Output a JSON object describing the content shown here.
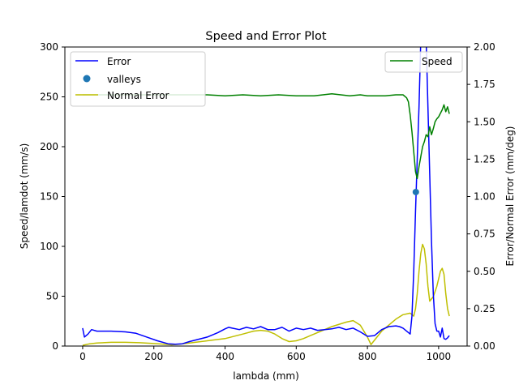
{
  "chart_data": {
    "type": "line",
    "title": "Speed and Error Plot",
    "xlabel": "lambda (mm)",
    "ylabel_left": "Speed/lamdot (mm/s)",
    "ylabel_right": "Error/Normal Error (mm/deg)",
    "xlim": [
      -50,
      1080
    ],
    "ylim_left": [
      0,
      300
    ],
    "ylim_right": [
      0,
      2.0
    ],
    "xticks": [
      0,
      200,
      400,
      600,
      800,
      1000
    ],
    "yticks_left": [
      0,
      50,
      100,
      150,
      200,
      250,
      300
    ],
    "yticks_right": [
      0.0,
      0.25,
      0.5,
      0.75,
      1.0,
      1.25,
      1.5,
      1.75,
      2.0
    ],
    "colors": {
      "error": "#0000ff",
      "valleys": "#1f77b4",
      "normal_error": "#bfbf00",
      "speed": "#008000"
    },
    "legend_left": {
      "placement": "upper-left",
      "entries": [
        "Error",
        "valleys",
        "Normal Error"
      ]
    },
    "legend_right": {
      "placement": "upper-right",
      "entries": [
        "Speed"
      ]
    },
    "series": [
      {
        "name": "Speed",
        "axis": "left",
        "x": [
          0,
          50,
          100,
          150,
          200,
          240,
          260,
          300,
          350,
          400,
          450,
          500,
          550,
          600,
          650,
          700,
          750,
          780,
          800,
          850,
          880,
          900,
          910,
          915,
          920,
          925,
          930,
          935,
          940,
          945,
          950,
          955,
          960,
          965,
          970,
          975,
          980,
          985,
          990,
          995,
          1000,
          1010,
          1015,
          1020,
          1025,
          1030
        ],
        "y": [
          252,
          252,
          252,
          252,
          252,
          252,
          252,
          252,
          252,
          251,
          252,
          251,
          252,
          251,
          251,
          253,
          251,
          252,
          251,
          251,
          252,
          252,
          249,
          245,
          232,
          215,
          195,
          175,
          168,
          180,
          190,
          200,
          205,
          212,
          210,
          220,
          212,
          218,
          225,
          228,
          230,
          237,
          242,
          235,
          240,
          233
        ]
      },
      {
        "name": "Error",
        "axis": "right",
        "x": [
          0,
          5,
          15,
          25,
          40,
          80,
          120,
          150,
          180,
          210,
          240,
          260,
          280,
          300,
          350,
          380,
          400,
          410,
          420,
          440,
          460,
          480,
          500,
          520,
          540,
          560,
          580,
          600,
          620,
          640,
          660,
          680,
          700,
          720,
          740,
          760,
          780,
          800,
          820,
          840,
          860,
          880,
          890,
          900,
          910,
          920,
          925,
          930,
          935,
          940,
          945,
          950,
          955,
          960,
          965,
          970,
          975,
          980,
          985,
          990,
          995,
          1000,
          1005,
          1010,
          1015,
          1020,
          1025,
          1030
        ],
        "y": [
          0.12,
          0.06,
          0.08,
          0.11,
          0.1,
          0.1,
          0.095,
          0.085,
          0.06,
          0.035,
          0.015,
          0.012,
          0.015,
          0.03,
          0.06,
          0.09,
          0.115,
          0.125,
          0.12,
          0.11,
          0.125,
          0.115,
          0.13,
          0.11,
          0.11,
          0.125,
          0.1,
          0.12,
          0.11,
          0.12,
          0.105,
          0.11,
          0.115,
          0.125,
          0.11,
          0.12,
          0.095,
          0.065,
          0.07,
          0.11,
          0.13,
          0.135,
          0.13,
          0.12,
          0.1,
          0.08,
          0.2,
          0.5,
          0.9,
          1.25,
          1.6,
          2.05,
          2.5,
          2.4,
          2.05,
          1.6,
          1.15,
          0.7,
          0.35,
          0.15,
          0.1,
          0.1,
          0.06,
          0.12,
          0.05,
          0.045,
          0.055,
          0.07
        ]
      },
      {
        "name": "Normal Error",
        "axis": "right",
        "x": [
          0,
          20,
          40,
          80,
          120,
          160,
          200,
          230,
          250,
          270,
          300,
          350,
          400,
          450,
          480,
          500,
          520,
          540,
          560,
          580,
          600,
          620,
          650,
          700,
          740,
          760,
          780,
          800,
          810,
          820,
          840,
          860,
          880,
          900,
          920,
          930,
          935,
          940,
          945,
          950,
          955,
          960,
          965,
          970,
          975,
          985,
          995,
          1005,
          1010,
          1015,
          1020,
          1025,
          1030
        ],
        "y": [
          0.005,
          0.015,
          0.02,
          0.025,
          0.025,
          0.022,
          0.017,
          0.012,
          0.008,
          0.012,
          0.02,
          0.035,
          0.05,
          0.08,
          0.1,
          0.105,
          0.1,
          0.08,
          0.05,
          0.03,
          0.035,
          0.05,
          0.08,
          0.13,
          0.16,
          0.17,
          0.14,
          0.06,
          0.01,
          0.04,
          0.1,
          0.14,
          0.18,
          0.21,
          0.22,
          0.2,
          0.25,
          0.35,
          0.5,
          0.62,
          0.68,
          0.65,
          0.55,
          0.4,
          0.3,
          0.33,
          0.4,
          0.5,
          0.52,
          0.48,
          0.35,
          0.25,
          0.2
        ]
      },
      {
        "name": "valleys",
        "axis": "right",
        "type": "scatter",
        "x": [
          936
        ],
        "y": [
          1.03
        ]
      }
    ]
  }
}
